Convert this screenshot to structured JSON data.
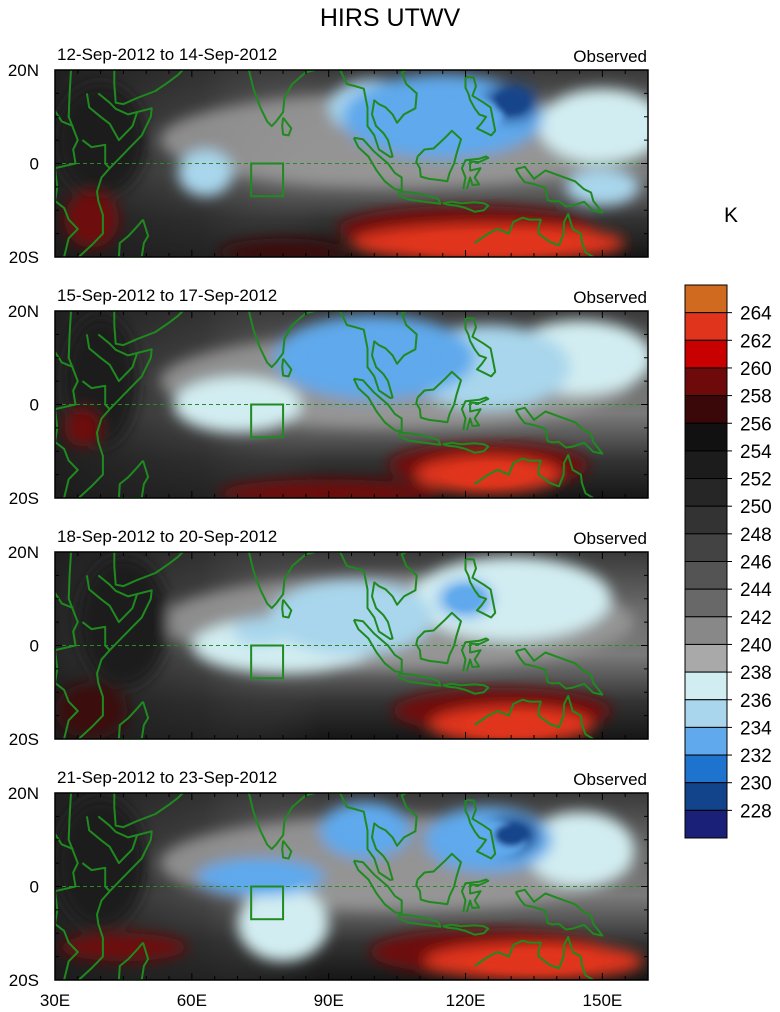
{
  "chart_data": {
    "type": "heatmap",
    "title": "HIRS UTWV",
    "units": "K",
    "x_ticks": [
      "30E",
      "60E",
      "90E",
      "120E",
      "150E"
    ],
    "y_ticks": [
      "20N",
      "0",
      "20S"
    ],
    "xlim_deg": [
      30,
      160
    ],
    "ylim_deg": [
      -20,
      20
    ],
    "box_region": {
      "lon": [
        73,
        80
      ],
      "lat": [
        -7,
        0
      ]
    },
    "colorbar": {
      "labels": [
        "264",
        "262",
        "260",
        "258",
        "256",
        "254",
        "252",
        "250",
        "248",
        "246",
        "244",
        "242",
        "240",
        "238",
        "236",
        "234",
        "232",
        "230",
        "228"
      ],
      "colors": [
        "#cf6a1f",
        "#e0341c",
        "#c80000",
        "#6e0a0a",
        "#3a0808",
        "#111111",
        "#1c1c1c",
        "#262626",
        "#333333",
        "#434343",
        "#545454",
        "#686868",
        "#888888",
        "#a9a9a9",
        "#d2edf1",
        "#a9d6ec",
        "#5fa9ec",
        "#1e73cf",
        "#12448c",
        "#1a2078"
      ]
    },
    "panels": [
      {
        "date_range": "12-Sep-2012 to 14-Sep-2012",
        "label": "Observed",
        "features": [
          {
            "lon": 130,
            "lat": 13,
            "value": 228,
            "r": [
              6,
              4
            ]
          },
          {
            "lon": 115,
            "lat": 10,
            "value": 232,
            "r": [
              22,
              9
            ]
          },
          {
            "lon": 100,
            "lat": 12,
            "value": 234,
            "r": [
              10,
              6
            ]
          },
          {
            "lon": 150,
            "lat": 8,
            "value": 236,
            "r": [
              14,
              8
            ]
          },
          {
            "lon": 150,
            "lat": -5,
            "value": 234,
            "r": [
              8,
              4
            ]
          },
          {
            "lon": 63,
            "lat": -2,
            "value": 234,
            "r": [
              6,
              5
            ]
          },
          {
            "lon": 125,
            "lat": -17,
            "value": 262,
            "r": [
              30,
              4
            ]
          },
          {
            "lon": 120,
            "lat": -14,
            "value": 258,
            "r": [
              28,
              5
            ]
          },
          {
            "lon": 38,
            "lat": -12,
            "value": 258,
            "r": [
              6,
              6
            ]
          },
          {
            "lon": 80,
            "lat": -19,
            "value": 256,
            "r": [
              14,
              3
            ]
          },
          {
            "lon": 40,
            "lat": 5,
            "value": 252,
            "r": [
              10,
              12
            ]
          }
        ]
      },
      {
        "date_range": "15-Sep-2012 to 17-Sep-2012",
        "label": "Observed",
        "features": [
          {
            "lon": 100,
            "lat": 10,
            "value": 232,
            "r": [
              22,
              9
            ]
          },
          {
            "lon": 125,
            "lat": 8,
            "value": 234,
            "r": [
              18,
              9
            ]
          },
          {
            "lon": 145,
            "lat": 10,
            "value": 236,
            "r": [
              16,
              8
            ]
          },
          {
            "lon": 70,
            "lat": 0,
            "value": 236,
            "r": [
              14,
              6
            ]
          },
          {
            "lon": 125,
            "lat": -15,
            "value": 262,
            "r": [
              16,
              4
            ]
          },
          {
            "lon": 125,
            "lat": -13,
            "value": 258,
            "r": [
              22,
              5
            ]
          },
          {
            "lon": 90,
            "lat": -19,
            "value": 258,
            "r": [
              24,
              3
            ]
          },
          {
            "lon": 36,
            "lat": -5,
            "value": 258,
            "r": [
              4,
              4
            ]
          },
          {
            "lon": 40,
            "lat": 5,
            "value": 252,
            "r": [
              8,
              14
            ]
          }
        ]
      },
      {
        "date_range": "18-Sep-2012 to 20-Sep-2012",
        "label": "Observed",
        "features": [
          {
            "lon": 120,
            "lat": 10,
            "value": 232,
            "r": [
              6,
              4
            ]
          },
          {
            "lon": 95,
            "lat": 6,
            "value": 234,
            "r": [
              18,
              8
            ]
          },
          {
            "lon": 130,
            "lat": 10,
            "value": 236,
            "r": [
              22,
              9
            ]
          },
          {
            "lon": 75,
            "lat": 3,
            "value": 234,
            "r": [
              6,
              3
            ]
          },
          {
            "lon": 80,
            "lat": 0,
            "value": 236,
            "r": [
              20,
              6
            ]
          },
          {
            "lon": 130,
            "lat": -17,
            "value": 262,
            "r": [
              18,
              4
            ]
          },
          {
            "lon": 128,
            "lat": -14,
            "value": 258,
            "r": [
              24,
              5
            ]
          },
          {
            "lon": 38,
            "lat": -14,
            "value": 256,
            "r": [
              8,
              6
            ]
          },
          {
            "lon": 45,
            "lat": 5,
            "value": 252,
            "r": [
              10,
              14
            ]
          }
        ]
      },
      {
        "date_range": "21-Sep-2012 to 23-Sep-2012",
        "label": "Observed",
        "features": [
          {
            "lon": 130,
            "lat": 11,
            "value": 228,
            "r": [
              6,
              4
            ]
          },
          {
            "lon": 125,
            "lat": 10,
            "value": 232,
            "r": [
              14,
              7
            ]
          },
          {
            "lon": 98,
            "lat": 12,
            "value": 232,
            "r": [
              10,
              6
            ]
          },
          {
            "lon": 75,
            "lat": 2,
            "value": 232,
            "r": [
              14,
              4
            ]
          },
          {
            "lon": 145,
            "lat": 8,
            "value": 236,
            "r": [
              12,
              8
            ]
          },
          {
            "lon": 80,
            "lat": -8,
            "value": 236,
            "r": [
              10,
              8
            ]
          },
          {
            "lon": 135,
            "lat": -16,
            "value": 262,
            "r": [
              24,
              4
            ]
          },
          {
            "lon": 125,
            "lat": -14,
            "value": 258,
            "r": [
              26,
              5
            ]
          },
          {
            "lon": 45,
            "lat": -13,
            "value": 258,
            "r": [
              14,
              3
            ]
          },
          {
            "lon": 40,
            "lat": 5,
            "value": 252,
            "r": [
              10,
              14
            ]
          }
        ]
      }
    ]
  }
}
